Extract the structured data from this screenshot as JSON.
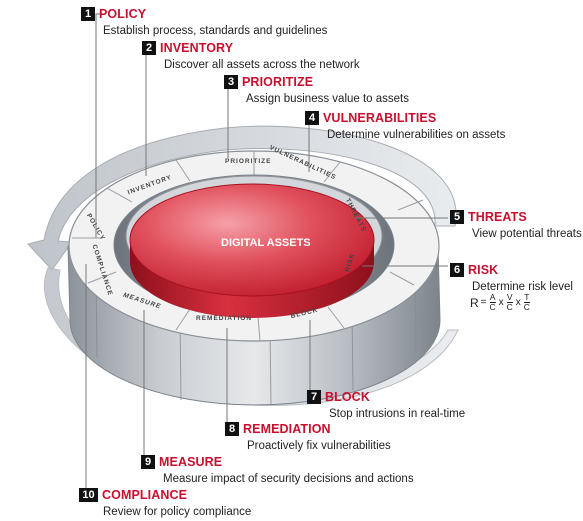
{
  "center_label": "DIGITAL ASSETS",
  "ring_labels": [
    "POLICY",
    "INVENTORY",
    "PRIORITIZE",
    "VULNERABILITIES",
    "THREATS",
    "RISK",
    "BLOCK",
    "REMEDIATION",
    "MEASURE",
    "COMPLIANCE"
  ],
  "steps": [
    {
      "number": "1",
      "title": "POLICY",
      "description": "Establish process, standards and guidelines"
    },
    {
      "number": "2",
      "title": "INVENTORY",
      "description": "Discover all assets across the network"
    },
    {
      "number": "3",
      "title": "PRIORITIZE",
      "description": "Assign business value to assets"
    },
    {
      "number": "4",
      "title": "VULNERABILITIES",
      "description": "Determine vulnerabilities on assets"
    },
    {
      "number": "5",
      "title": "THREATS",
      "description": "View potential threats"
    },
    {
      "number": "6",
      "title": "RISK",
      "description": "Determine risk level"
    },
    {
      "number": "7",
      "title": "BLOCK",
      "description": "Stop intrusions in real-time"
    },
    {
      "number": "8",
      "title": "REMEDIATION",
      "description": "Proactively fix vulnerabilities"
    },
    {
      "number": "9",
      "title": "MEASURE",
      "description": "Measure impact of security decisions and actions"
    },
    {
      "number": "10",
      "title": "COMPLIANCE",
      "description": "Review for policy compliance"
    }
  ],
  "formula": {
    "lhs": "R",
    "equals": "=",
    "times": "x",
    "terms": [
      {
        "num": "A",
        "den": "C"
      },
      {
        "num": "V",
        "den": "C"
      },
      {
        "num": "T",
        "den": "C"
      }
    ]
  },
  "colors": {
    "accent_red": "#c8102e",
    "badge_black": "#111111",
    "ring_top": "#f2f2f2",
    "ring_side": "#9a9fa6"
  }
}
